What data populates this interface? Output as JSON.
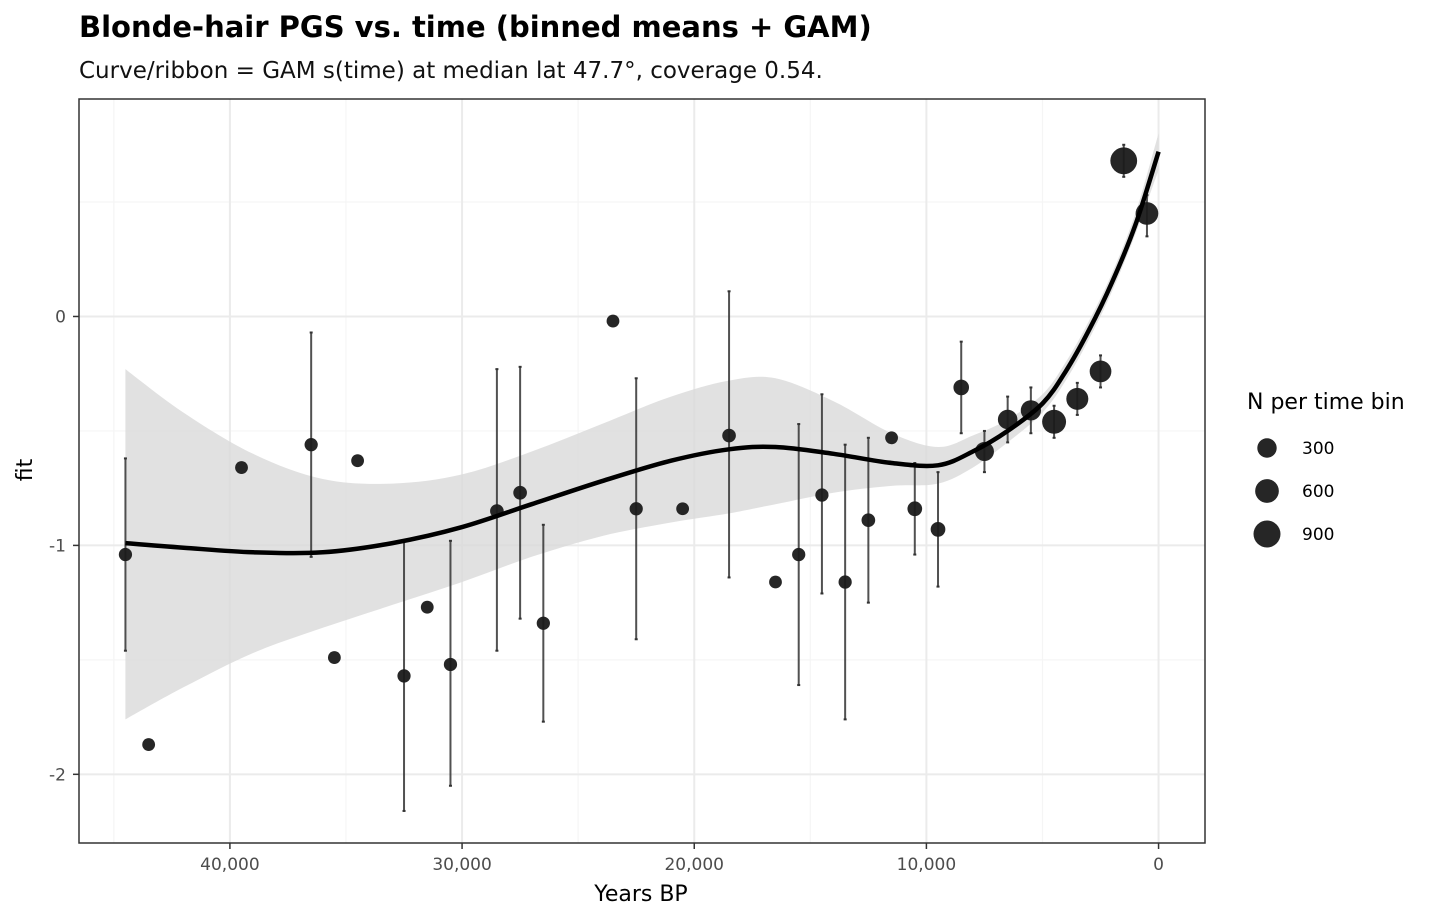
{
  "chart_data": {
    "type": "scatter",
    "title": "Blonde-hair PGS vs. time (binned means + GAM)",
    "subtitle": "Curve/ribbon = GAM s(time) at median lat 47.7°, coverage 0.54.",
    "xlabel": "Years BP",
    "ylabel": "fit",
    "xlim": [
      46500,
      -2000
    ],
    "ylim": [
      -2.3,
      0.95
    ],
    "x_ticks": [
      40000,
      30000,
      20000,
      10000,
      0
    ],
    "x_tick_labels": [
      "40,000",
      "30,000",
      "20,000",
      "10,000",
      "0"
    ],
    "y_ticks": [
      0,
      -1,
      -2
    ],
    "y_tick_labels": [
      "0",
      "-1",
      "-2"
    ],
    "grid": true,
    "colors": {
      "point": "#1a1a1a",
      "errorbar": "#333333",
      "curve": "#000000",
      "ribbon": "#d9d9d9",
      "grid_major": "#ebebeb",
      "grid_minor": "#f5f5f5",
      "panel_border": "#333333"
    },
    "points": [
      {
        "x": 44500,
        "y": -1.04,
        "lo": -1.46,
        "hi": -0.62,
        "n": 50
      },
      {
        "x": 43500,
        "y": -1.87,
        "lo": null,
        "hi": null,
        "n": 40
      },
      {
        "x": 39500,
        "y": -0.66,
        "lo": null,
        "hi": null,
        "n": 40
      },
      {
        "x": 36500,
        "y": -0.56,
        "lo": -1.05,
        "hi": -0.07,
        "n": 50
      },
      {
        "x": 35500,
        "y": -1.49,
        "lo": null,
        "hi": null,
        "n": 40
      },
      {
        "x": 34500,
        "y": -0.63,
        "lo": null,
        "hi": null,
        "n": 40
      },
      {
        "x": 32500,
        "y": -1.57,
        "lo": -2.16,
        "hi": -0.98,
        "n": 50
      },
      {
        "x": 31500,
        "y": -1.27,
        "lo": null,
        "hi": null,
        "n": 40
      },
      {
        "x": 30500,
        "y": -1.52,
        "lo": -2.05,
        "hi": -0.98,
        "n": 50
      },
      {
        "x": 28500,
        "y": -0.85,
        "lo": -1.46,
        "hi": -0.23,
        "n": 60
      },
      {
        "x": 27500,
        "y": -0.77,
        "lo": -1.32,
        "hi": -0.22,
        "n": 60
      },
      {
        "x": 26500,
        "y": -1.34,
        "lo": -1.77,
        "hi": -0.91,
        "n": 50
      },
      {
        "x": 23500,
        "y": -0.02,
        "lo": null,
        "hi": null,
        "n": 40
      },
      {
        "x": 22500,
        "y": -0.84,
        "lo": -1.41,
        "hi": -0.27,
        "n": 50
      },
      {
        "x": 20500,
        "y": -0.84,
        "lo": null,
        "hi": null,
        "n": 40
      },
      {
        "x": 18500,
        "y": -0.52,
        "lo": -1.14,
        "hi": 0.11,
        "n": 60
      },
      {
        "x": 16500,
        "y": -1.16,
        "lo": null,
        "hi": null,
        "n": 40
      },
      {
        "x": 15500,
        "y": -1.04,
        "lo": -1.61,
        "hi": -0.47,
        "n": 50
      },
      {
        "x": 14500,
        "y": -0.78,
        "lo": -1.21,
        "hi": -0.34,
        "n": 50
      },
      {
        "x": 13500,
        "y": -1.16,
        "lo": -1.76,
        "hi": -0.56,
        "n": 50
      },
      {
        "x": 12500,
        "y": -0.89,
        "lo": -1.25,
        "hi": -0.53,
        "n": 60
      },
      {
        "x": 11500,
        "y": -0.53,
        "lo": null,
        "hi": null,
        "n": 40
      },
      {
        "x": 10500,
        "y": -0.84,
        "lo": -1.04,
        "hi": -0.64,
        "n": 90
      },
      {
        "x": 9500,
        "y": -0.93,
        "lo": -1.18,
        "hi": -0.68,
        "n": 90
      },
      {
        "x": 8500,
        "y": -0.31,
        "lo": -0.51,
        "hi": -0.11,
        "n": 120
      },
      {
        "x": 7500,
        "y": -0.59,
        "lo": -0.68,
        "hi": -0.5,
        "n": 280
      },
      {
        "x": 6500,
        "y": -0.45,
        "lo": -0.55,
        "hi": -0.35,
        "n": 310
      },
      {
        "x": 5500,
        "y": -0.41,
        "lo": -0.51,
        "hi": -0.31,
        "n": 350
      },
      {
        "x": 4500,
        "y": -0.46,
        "lo": -0.53,
        "hi": -0.39,
        "n": 620
      },
      {
        "x": 3500,
        "y": -0.36,
        "lo": -0.43,
        "hi": -0.29,
        "n": 470
      },
      {
        "x": 2500,
        "y": -0.24,
        "lo": -0.31,
        "hi": -0.17,
        "n": 450
      },
      {
        "x": 1500,
        "y": 0.68,
        "lo": 0.61,
        "hi": 0.75,
        "n": 880
      },
      {
        "x": 500,
        "y": 0.45,
        "lo": 0.35,
        "hi": 0.53,
        "n": 520
      }
    ],
    "gam_curve": {
      "x": [
        44500,
        42000,
        39000,
        36000,
        33000,
        30000,
        27000,
        24000,
        21000,
        18500,
        16500,
        14000,
        11500,
        9500,
        8000,
        6500,
        5000,
        4000,
        3000,
        2000,
        1000,
        0
      ],
      "fit": [
        -0.99,
        -1.01,
        -1.03,
        -1.03,
        -0.99,
        -0.92,
        -0.82,
        -0.72,
        -0.63,
        -0.58,
        -0.57,
        -0.6,
        -0.64,
        -0.65,
        -0.59,
        -0.5,
        -0.38,
        -0.24,
        -0.06,
        0.15,
        0.4,
        0.72
      ],
      "lo": [
        -1.76,
        -1.62,
        -1.47,
        -1.36,
        -1.26,
        -1.16,
        -1.05,
        -0.96,
        -0.9,
        -0.86,
        -0.82,
        -0.77,
        -0.74,
        -0.73,
        -0.66,
        -0.55,
        -0.42,
        -0.28,
        -0.1,
        0.11,
        0.36,
        0.64
      ],
      "hi": [
        -0.23,
        -0.42,
        -0.6,
        -0.71,
        -0.73,
        -0.69,
        -0.59,
        -0.47,
        -0.35,
        -0.28,
        -0.27,
        -0.37,
        -0.51,
        -0.57,
        -0.52,
        -0.45,
        -0.34,
        -0.2,
        -0.02,
        0.19,
        0.45,
        0.8
      ]
    },
    "legend": {
      "title": "N per time bin",
      "position": "right",
      "entries": [
        {
          "label": "300",
          "n": 300
        },
        {
          "label": "600",
          "n": 600
        },
        {
          "label": "900",
          "n": 900
        }
      ]
    }
  }
}
